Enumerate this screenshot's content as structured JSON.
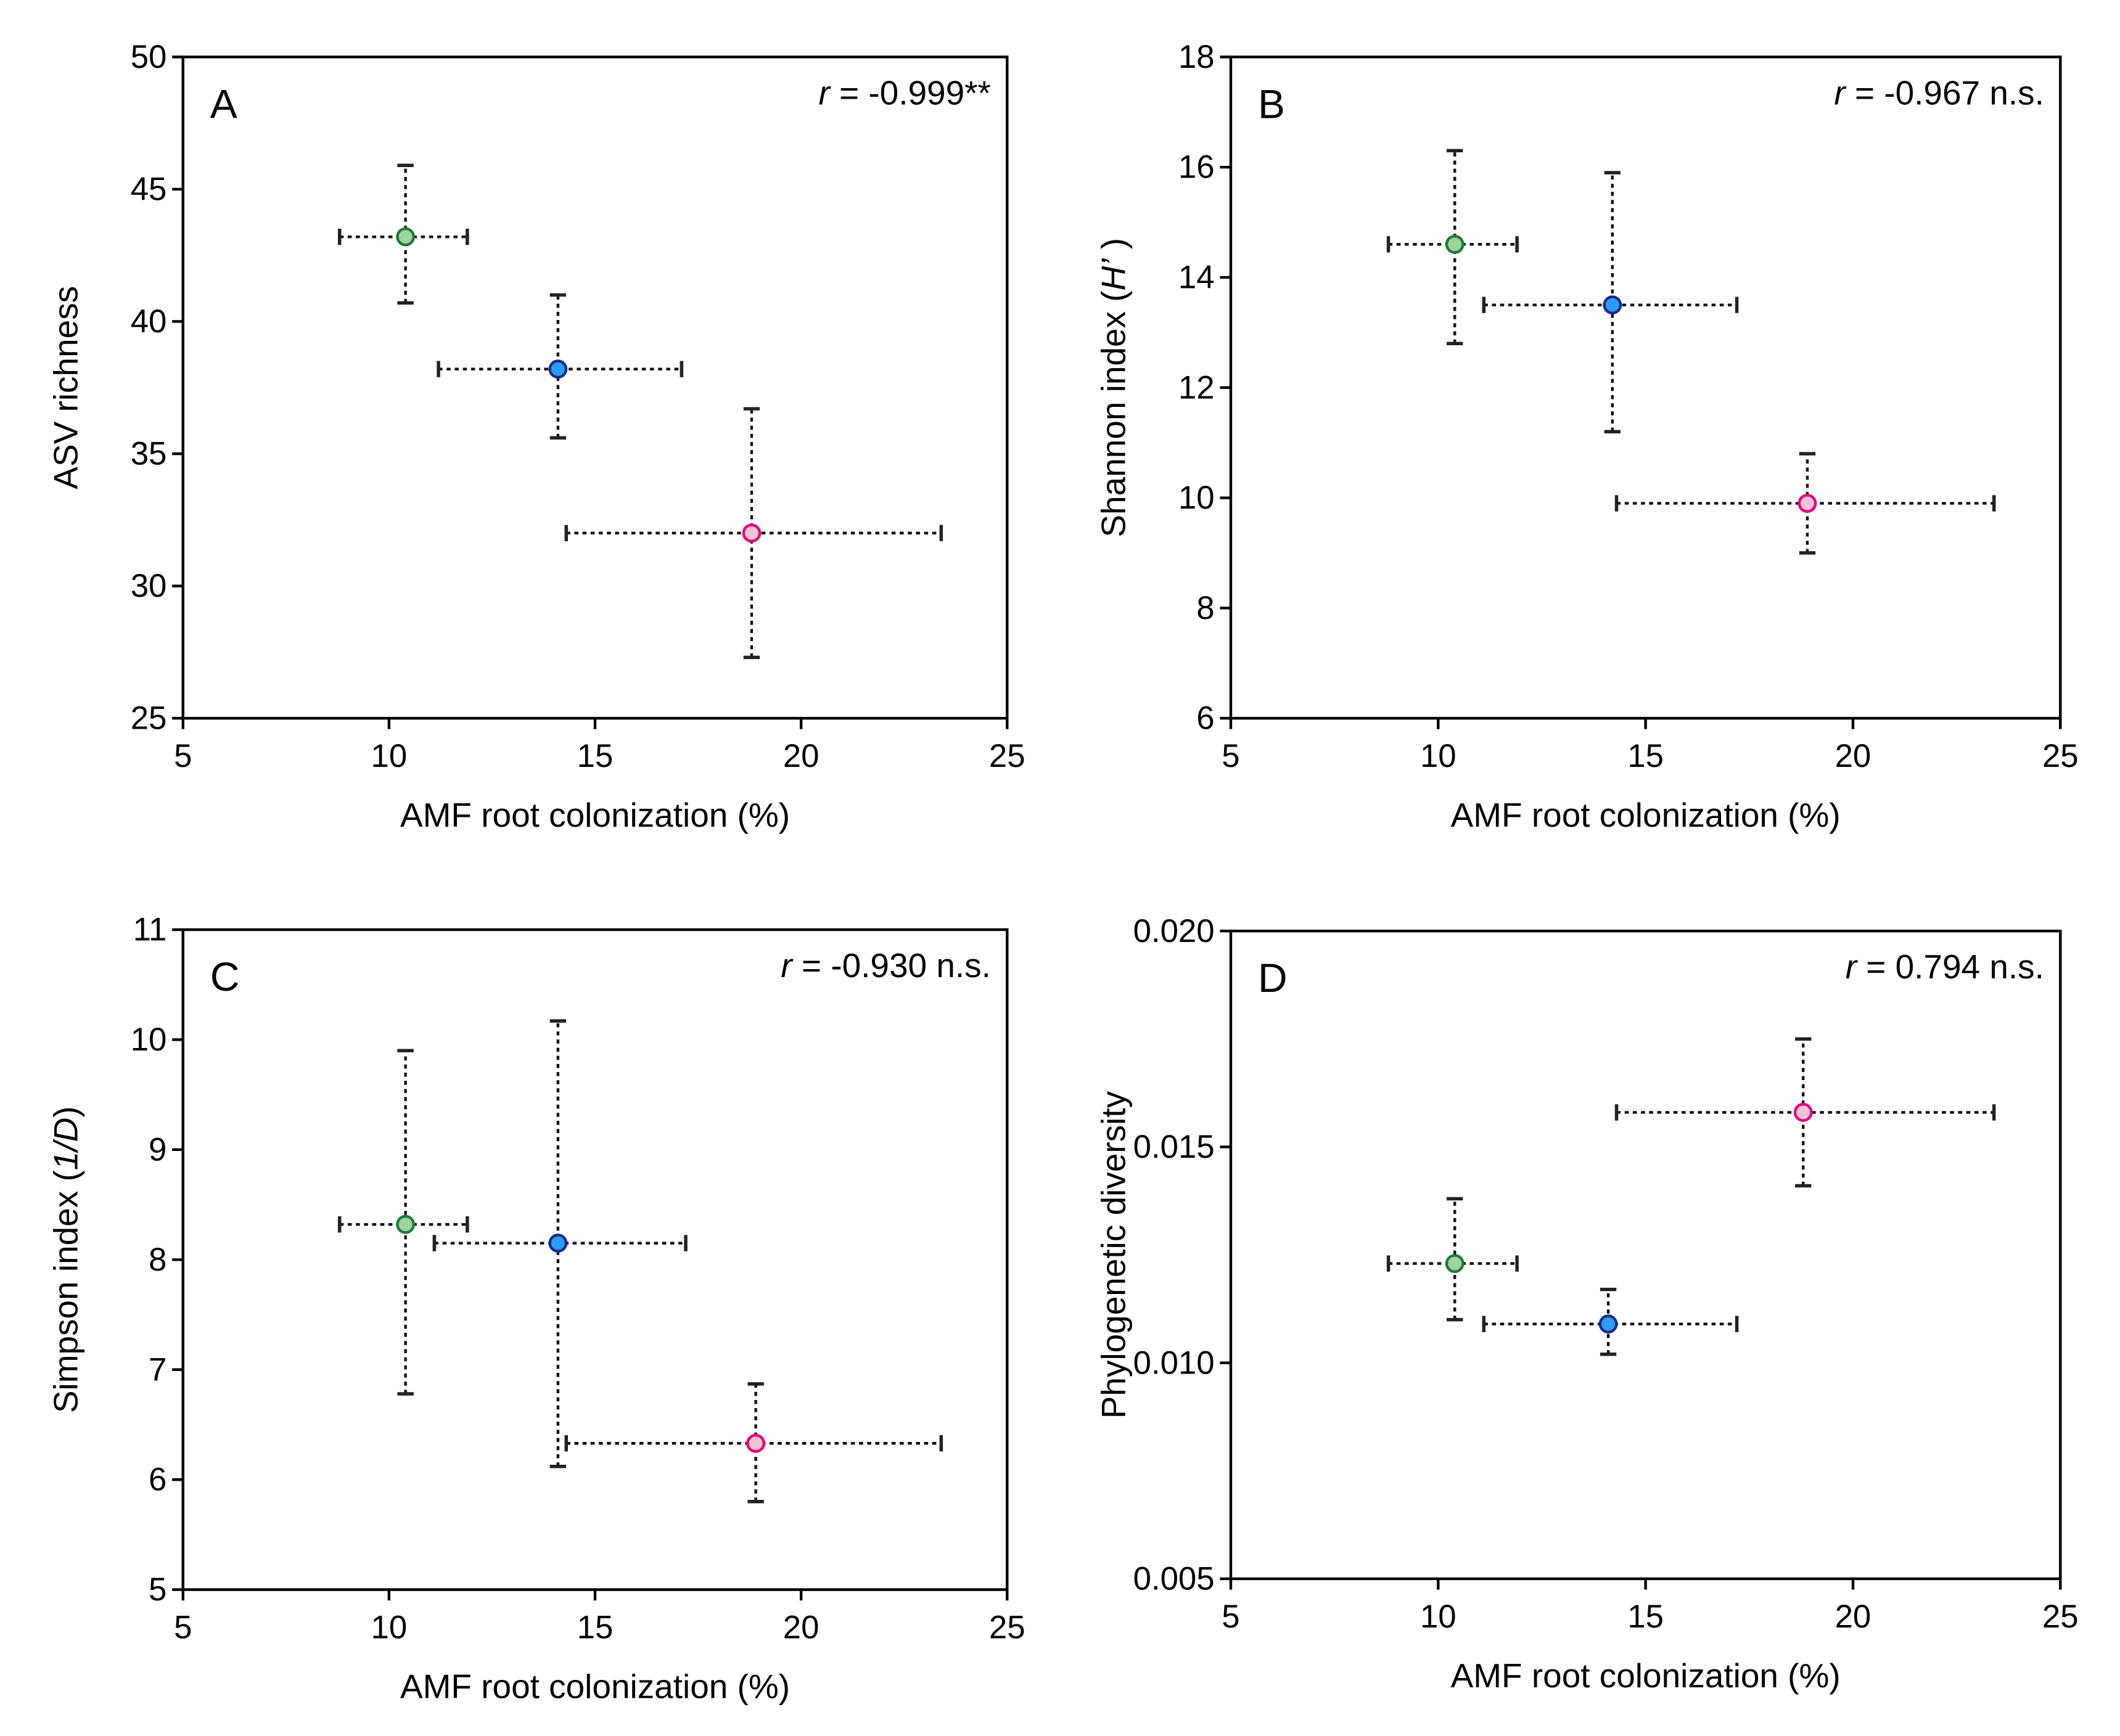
{
  "chart_data": [
    {
      "type": "scatter",
      "panel": "A",
      "annotation": {
        "r_symbol": "r",
        "text": " = -0.999**"
      },
      "xlabel": "AMF root colonization (%)",
      "ylabel": {
        "pre": "ASV richness",
        "ital": "",
        "post": ""
      },
      "xlim": [
        5,
        25
      ],
      "xticks": [
        "5",
        "10",
        "15",
        "20",
        "25"
      ],
      "ylim": [
        25,
        50
      ],
      "yticks": [
        "25",
        "30",
        "35",
        "40",
        "45",
        "50"
      ],
      "points": [
        {
          "group": "green",
          "x": 10.4,
          "y": 43.2,
          "xerr": [
            8.8,
            11.9
          ],
          "yerr": [
            40.7,
            45.9
          ]
        },
        {
          "group": "blue",
          "x": 14.1,
          "y": 38.2,
          "xerr": [
            11.2,
            17.1
          ],
          "yerr": [
            35.6,
            41.0
          ]
        },
        {
          "group": "pink",
          "x": 18.8,
          "y": 32.0,
          "xerr": [
            14.3,
            23.4
          ],
          "yerr": [
            27.3,
            36.7
          ]
        }
      ]
    },
    {
      "type": "scatter",
      "panel": "B",
      "annotation": {
        "r_symbol": "r",
        "text": " = -0.967 n.s."
      },
      "xlabel": "AMF root colonization (%)",
      "ylabel": {
        "pre": "Shannon index (",
        "ital": "H’",
        "post": " )"
      },
      "xlim": [
        5,
        25
      ],
      "xticks": [
        "5",
        "10",
        "15",
        "20",
        "25"
      ],
      "ylim": [
        6,
        18
      ],
      "yticks": [
        "6",
        "8",
        "10",
        "12",
        "14",
        "16",
        "18"
      ],
      "points": [
        {
          "group": "green",
          "x": 10.4,
          "y": 14.6,
          "xerr": [
            8.8,
            11.9
          ],
          "yerr": [
            12.8,
            16.3
          ]
        },
        {
          "group": "blue",
          "x": 14.2,
          "y": 13.5,
          "xerr": [
            11.1,
            17.2
          ],
          "yerr": [
            11.2,
            15.9
          ]
        },
        {
          "group": "pink",
          "x": 18.9,
          "y": 9.9,
          "xerr": [
            14.3,
            23.4
          ],
          "yerr": [
            9.0,
            10.8
          ]
        }
      ]
    },
    {
      "type": "scatter",
      "panel": "C",
      "annotation": {
        "r_symbol": "r",
        "text": " = -0.930 n.s."
      },
      "xlabel": "AMF root colonization (%)",
      "ylabel": {
        "pre": "Simpson index (",
        "ital": "1/D",
        "post": ")"
      },
      "xlim": [
        5,
        25
      ],
      "xticks": [
        "5",
        "10",
        "15",
        "20",
        "25"
      ],
      "ylim": [
        5,
        11
      ],
      "yticks": [
        "5",
        "6",
        "7",
        "8",
        "9",
        "10",
        "11"
      ],
      "points": [
        {
          "group": "green",
          "x": 10.4,
          "y": 8.32,
          "xerr": [
            8.8,
            11.9
          ],
          "yerr": [
            6.78,
            9.9
          ]
        },
        {
          "group": "blue",
          "x": 14.1,
          "y": 8.15,
          "xerr": [
            11.1,
            17.2
          ],
          "yerr": [
            6.12,
            10.17
          ]
        },
        {
          "group": "pink",
          "x": 18.9,
          "y": 6.33,
          "xerr": [
            14.3,
            23.4
          ],
          "yerr": [
            5.8,
            6.87
          ]
        }
      ]
    },
    {
      "type": "scatter",
      "panel": "D",
      "annotation": {
        "r_symbol": "r",
        "text": " = 0.794 n.s."
      },
      "xlabel": "AMF root colonization (%)",
      "ylabel": {
        "pre": "Phylogenetic diversity",
        "ital": "",
        "post": ""
      },
      "xlim": [
        5,
        25
      ],
      "xticks": [
        "5",
        "10",
        "15",
        "20",
        "25"
      ],
      "ylim": [
        0.005,
        0.02
      ],
      "yticks": [
        "0.005",
        "0.010",
        "0.015",
        "0.020"
      ],
      "points": [
        {
          "group": "green",
          "x": 10.4,
          "y": 0.0123,
          "xerr": [
            8.8,
            11.9
          ],
          "yerr": [
            0.011,
            0.0138
          ]
        },
        {
          "group": "blue",
          "x": 14.1,
          "y": 0.0109,
          "xerr": [
            11.1,
            17.2
          ],
          "yerr": [
            0.0102,
            0.0117
          ]
        },
        {
          "group": "pink",
          "x": 18.8,
          "y": 0.0158,
          "xerr": [
            14.3,
            23.4
          ],
          "yerr": [
            0.0141,
            0.0175
          ]
        }
      ]
    }
  ],
  "colors": {
    "green": {
      "fill": "#9fd49a",
      "stroke": "#1e7a3c"
    },
    "blue": {
      "fill": "#2a9df4",
      "stroke": "#1a2a8a"
    },
    "pink": {
      "fill": "#f6c3d6",
      "stroke": "#e6007e"
    }
  }
}
